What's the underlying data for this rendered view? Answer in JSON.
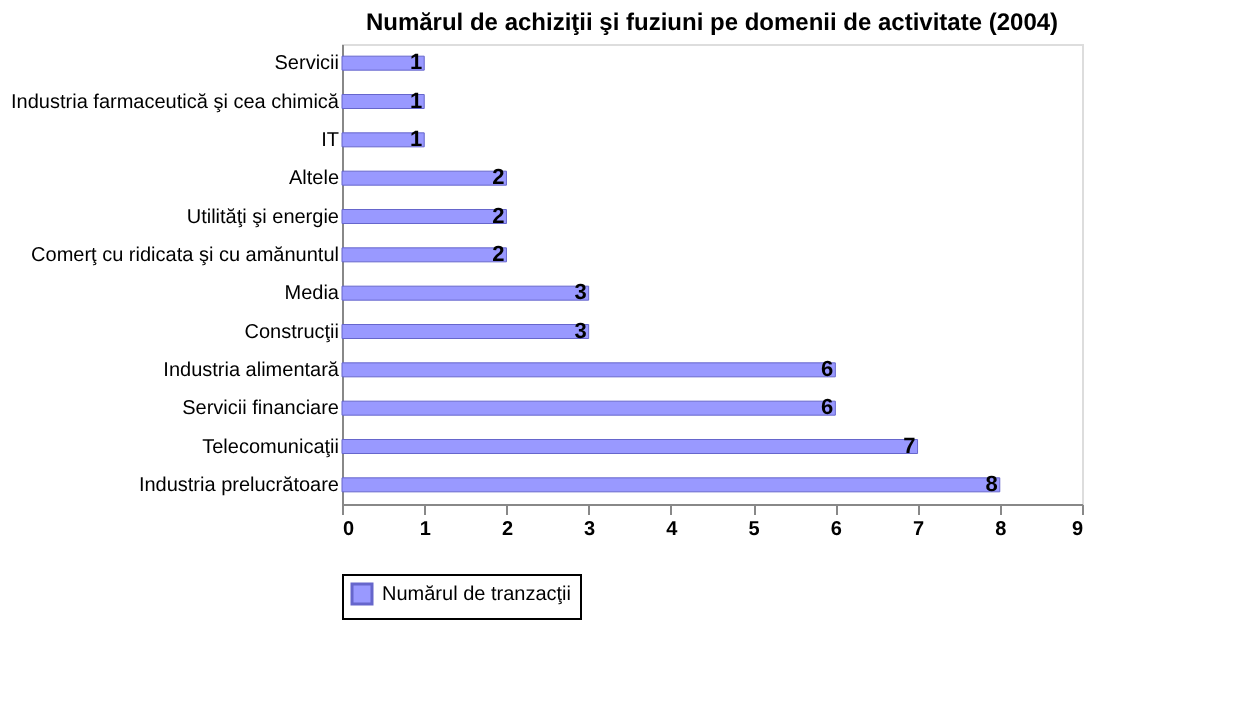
{
  "chart_data": {
    "type": "bar",
    "orientation": "horizontal",
    "title": "Numărul de achiziţii şi fuziuni pe domenii de activitate (2004)",
    "categories": [
      "Servicii",
      "Industria farmaceutică şi cea chimică",
      "IT",
      "Altele",
      "Utilităţi şi energie",
      "Comerţ cu ridicata şi cu amănuntul",
      "Media",
      "Construcţii",
      "Industria alimentară",
      "Servicii financiare",
      "Telecomunicaţii",
      "Industria prelucrătoare"
    ],
    "series": [
      {
        "name": "Numărul de tranzacţii",
        "color": "#9999ff",
        "values": [
          1,
          1,
          1,
          2,
          2,
          2,
          3,
          3,
          6,
          6,
          7,
          8
        ]
      }
    ],
    "xlim": [
      0,
      9
    ],
    "xticks": [
      0,
      1,
      2,
      3,
      4,
      5,
      6,
      7,
      8,
      9
    ],
    "data_labels": true,
    "legend": "bottom",
    "grid": false
  }
}
